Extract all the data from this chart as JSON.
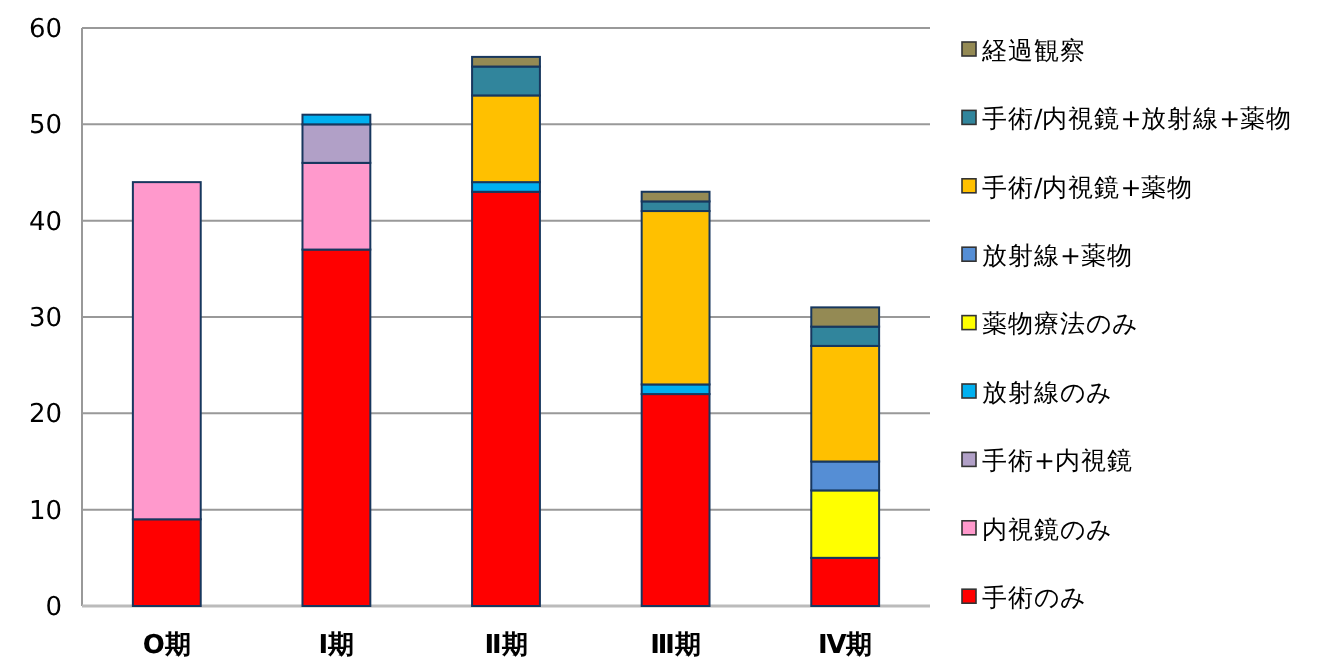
{
  "chart_data": {
    "type": "bar",
    "stacked": true,
    "categories": [
      "O期",
      "Ⅰ期",
      "Ⅱ期",
      "Ⅲ期",
      "Ⅳ期"
    ],
    "ylim": [
      0,
      60
    ],
    "yticks": [
      0,
      10,
      20,
      30,
      40,
      50,
      60
    ],
    "grid": "y",
    "legend": "right",
    "series": [
      {
        "name": "手術のみ",
        "color": "#ff0000",
        "values": [
          9,
          37,
          43,
          22,
          5
        ]
      },
      {
        "name": "内視鏡のみ",
        "color": "#ff99cc",
        "values": [
          35,
          9,
          0,
          0,
          0
        ]
      },
      {
        "name": "手術+内視鏡",
        "color": "#b1a0c7",
        "values": [
          0,
          4,
          0,
          0,
          0
        ]
      },
      {
        "name": "放射線のみ",
        "color": "#00b0f0",
        "values": [
          0,
          1,
          1,
          1,
          0
        ]
      },
      {
        "name": "薬物療法のみ",
        "color": "#ffff00",
        "values": [
          0,
          0,
          0,
          0,
          7
        ]
      },
      {
        "name": "放射線+薬物",
        "color": "#558ed5",
        "values": [
          0,
          0,
          0,
          0,
          3
        ]
      },
      {
        "name": "手術/内視鏡+薬物",
        "color": "#ffc000",
        "values": [
          0,
          0,
          9,
          18,
          12
        ]
      },
      {
        "name": "手術/内視鏡+放射線+薬物",
        "color": "#31859c",
        "values": [
          0,
          0,
          3,
          1,
          2
        ]
      },
      {
        "name": "経過観察",
        "color": "#948a54",
        "values": [
          0,
          0,
          1,
          1,
          2
        ]
      }
    ]
  }
}
